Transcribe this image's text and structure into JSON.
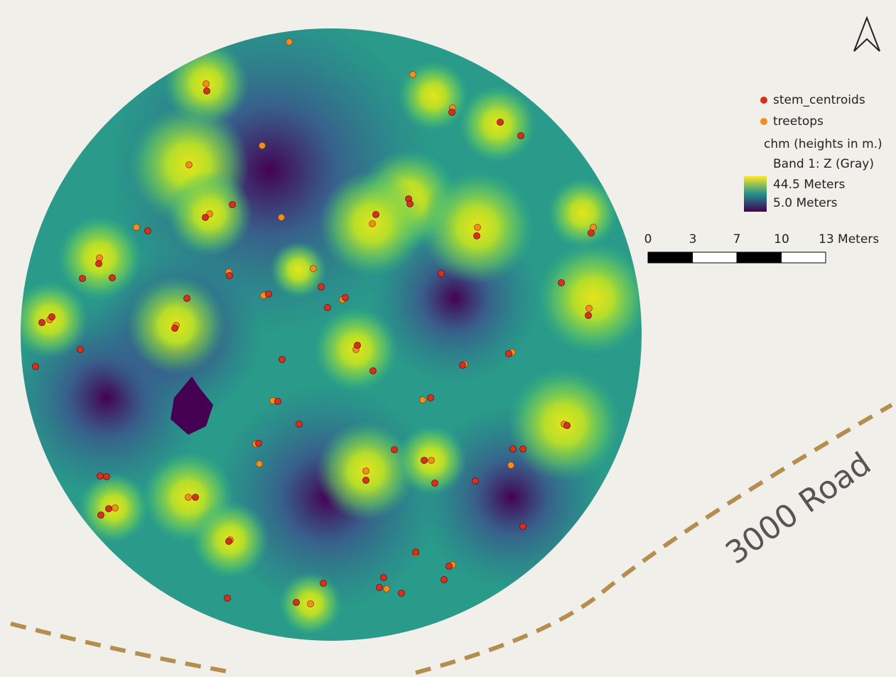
{
  "legend": {
    "items": [
      "stem_centroids",
      "treetops"
    ],
    "raster": {
      "title": "chm (heights in m.)",
      "band": "Band 1: Z (Gray)",
      "max": "44.5 Meters",
      "min": "5.0 Meters"
    }
  },
  "scale_bar": {
    "labels": [
      "0",
      "3",
      "7",
      "10",
      "13 Meters"
    ]
  },
  "road": {
    "label": "3000 Road"
  }
}
